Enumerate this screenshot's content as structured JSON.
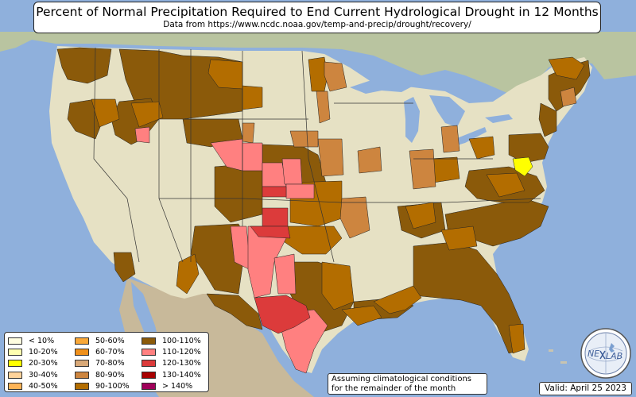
{
  "title": "Percent of Normal Precipitation Required to End Current Hydrological Drought in 12 Months",
  "subtitle": "Data from https://www.ncdc.noaa.gov/temp-and-precip/drought/recovery/",
  "legend": [
    {
      "label": "< 10%",
      "color": "#fffde0"
    },
    {
      "label": "10-20%",
      "color": "#ffffb0"
    },
    {
      "label": "20-30%",
      "color": "#ffff00"
    },
    {
      "label": "30-40%",
      "color": "#ffd39b"
    },
    {
      "label": "40-50%",
      "color": "#ffb457"
    },
    {
      "label": "50-60%",
      "color": "#f9a838"
    },
    {
      "label": "60-70%",
      "color": "#f0901a"
    },
    {
      "label": "70-80%",
      "color": "#d8a877"
    },
    {
      "label": "80-90%",
      "color": "#cd853f"
    },
    {
      "label": "90-100%",
      "color": "#b36d00"
    },
    {
      "label": "100-110%",
      "color": "#8b5a0a"
    },
    {
      "label": "110-120%",
      "color": "#ff8080"
    },
    {
      "label": "120-130%",
      "color": "#dc3b3b"
    },
    {
      "label": "130-140%",
      "color": "#a80000"
    },
    {
      "label": "> 140%",
      "color": "#a0005a"
    }
  ],
  "note": [
    "Assuming climatological conditions",
    "for the remainder of the month"
  ],
  "valid": "Valid: April 25 2023",
  "logo": {
    "text_left": "NE",
    "text_right": "LAB",
    "icon": "nexlab-globe-logo"
  }
}
